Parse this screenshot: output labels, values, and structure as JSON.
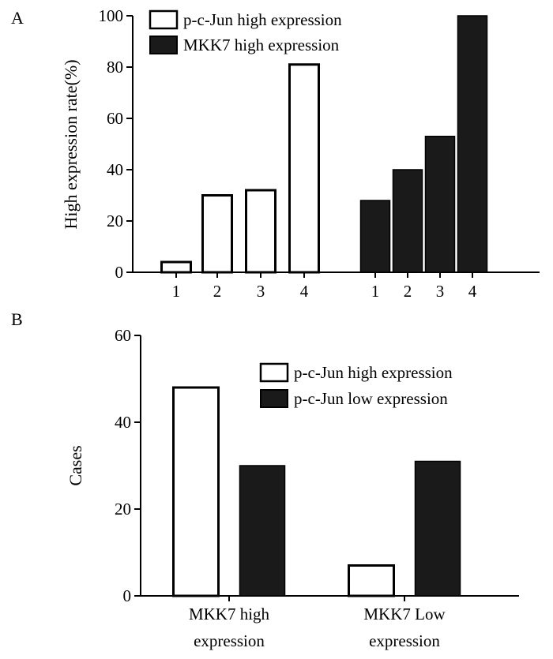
{
  "chart_data": [
    {
      "panel_label": "A",
      "type": "bar",
      "ylabel": "High expression rate(%)",
      "ylim": [
        0,
        100
      ],
      "yticks": [
        "0",
        "20",
        "40",
        "60",
        "80",
        "100"
      ],
      "grid": false,
      "legend_position": "top-left",
      "groups": [
        {
          "name": "p-c-Jun high expression",
          "fill": "#ffffff",
          "categories": [
            "1",
            "2",
            "3",
            "4"
          ],
          "values": [
            4,
            30,
            32,
            81
          ]
        },
        {
          "name": "MKK7 high expression",
          "fill": "#1a1a1a",
          "categories": [
            "1",
            "2",
            "3",
            "4"
          ],
          "values": [
            28,
            40,
            53,
            100
          ]
        }
      ]
    },
    {
      "panel_label": "B",
      "type": "bar",
      "ylabel": "Cases",
      "ylim": [
        0,
        60
      ],
      "yticks": [
        "0",
        "20",
        "40",
        "60"
      ],
      "grid": false,
      "legend_position": "top-right",
      "categories": [
        [
          "MKK7 high",
          "expression"
        ],
        [
          "MKK7 Low",
          "expression"
        ]
      ],
      "series": [
        {
          "name": "p-c-Jun high expression",
          "fill": "#ffffff",
          "values": [
            48,
            7
          ]
        },
        {
          "name": "p-c-Jun low expression",
          "fill": "#1a1a1a",
          "values": [
            30,
            31
          ]
        }
      ]
    }
  ]
}
